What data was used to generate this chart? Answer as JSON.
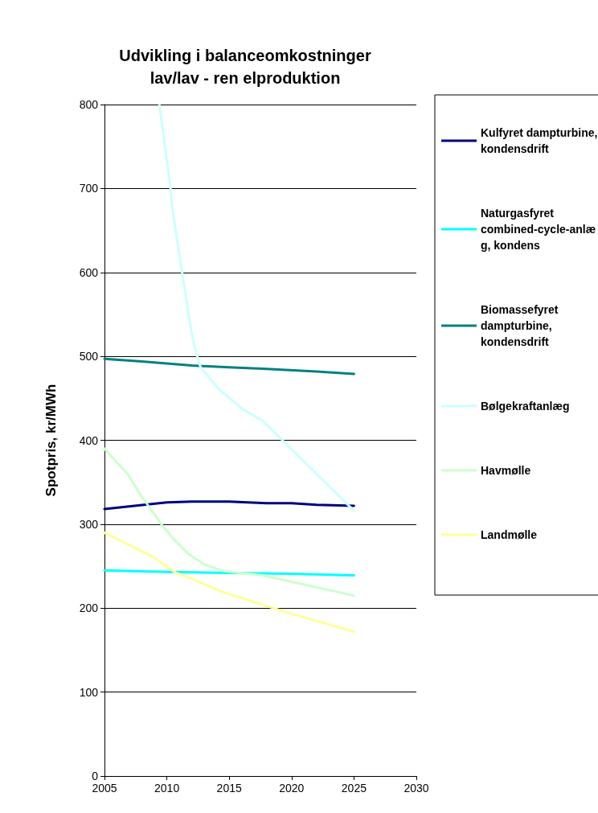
{
  "chart_data": {
    "type": "line",
    "title": "Udvikling i balanceomkostninger\nlav/lav - ren elproduktion",
    "ylabel": "Spotpris, kr/MWh",
    "xlim": [
      2005,
      2030
    ],
    "xticks": [
      2005,
      2010,
      2015,
      2020,
      2025,
      2030
    ],
    "ylim": [
      0,
      800
    ],
    "yticks": [
      0,
      100,
      200,
      300,
      400,
      500,
      600,
      700,
      800
    ],
    "grid": "y",
    "legend": "right",
    "marker": "none",
    "line_style": "solid",
    "series": [
      {
        "name": "Kulfyret dampturbine, kondensdrift",
        "color": "#000080",
        "x": [
          2005,
          2010,
          2012,
          2015,
          2018,
          2020,
          2022,
          2025
        ],
        "values": [
          318,
          326,
          327,
          327,
          325,
          325,
          323,
          322
        ]
      },
      {
        "name": "Naturgasfyret combined-cycle-anlæg, kondens",
        "color": "#00ffff",
        "x": [
          2005,
          2010,
          2015,
          2020,
          2025
        ],
        "values": [
          245,
          243,
          242,
          241,
          239
        ]
      },
      {
        "name": "Biomassefyret dampturbine, kondensdrift",
        "color": "#008080",
        "x": [
          2005,
          2008,
          2012,
          2015,
          2018,
          2022,
          2025
        ],
        "values": [
          497,
          494,
          489,
          487,
          485,
          482,
          479
        ]
      },
      {
        "name": "Bølgekraftanlæg",
        "color": "#ccffff",
        "x": [
          2009.4,
          2010.3,
          2010.4,
          2011.2,
          2011.9,
          2012.2,
          2012.7,
          2014.1,
          2016,
          2017.7,
          2025
        ],
        "values": [
          800,
          700,
          680,
          602,
          535,
          512,
          487,
          462,
          438,
          423,
          316
        ]
      },
      {
        "name": "Havmølle",
        "color": "#ccffcc",
        "x": [
          2005,
          2006.9,
          2007.8,
          2009.6,
          2010.5,
          2011.7,
          2013,
          2014.6,
          2017.7,
          2025
        ],
        "values": [
          390,
          359,
          337,
          299,
          283,
          265,
          252,
          244,
          239,
          215
        ]
      },
      {
        "name": "Landmølle",
        "color": "#ffff99",
        "x": [
          2005,
          2008.8,
          2010.6,
          2012.3,
          2014.5,
          2019.4,
          2025
        ],
        "values": [
          290,
          262,
          243,
          233,
          219,
          196,
          172
        ]
      }
    ]
  }
}
